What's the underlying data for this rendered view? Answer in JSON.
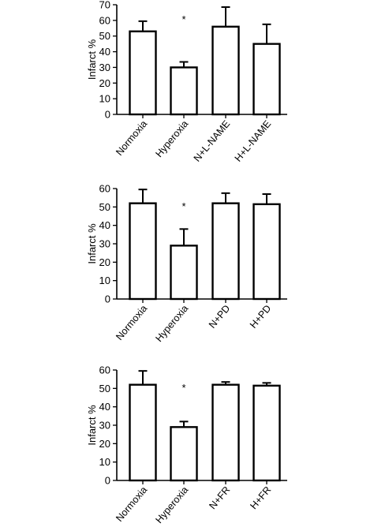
{
  "chart_data": [
    {
      "type": "bar",
      "categories": [
        "Normoxia",
        "Hyperoxia",
        "N+L-NAME",
        "H+L-NAME"
      ],
      "values": [
        53,
        30,
        56,
        45
      ],
      "errors": [
        6.5,
        3.5,
        12.5,
        12.5
      ],
      "ylabel": "Infarct %",
      "ylim": [
        0,
        70
      ],
      "yticks": [
        "0",
        "10",
        "20",
        "30",
        "40",
        "50",
        "60",
        "70"
      ],
      "annotation": {
        "text": "*",
        "category": "Hyperoxia"
      }
    },
    {
      "type": "bar",
      "categories": [
        "Normoxia",
        "Hyperoxia",
        "N+PD",
        "H+PD"
      ],
      "values": [
        52,
        29,
        52,
        51.5
      ],
      "errors": [
        7.5,
        9,
        5.5,
        5.5
      ],
      "ylabel": "Infarct %",
      "ylim": [
        0,
        60
      ],
      "yticks": [
        "0",
        "10",
        "20",
        "30",
        "40",
        "50",
        "60"
      ],
      "annotation": {
        "text": "*",
        "category": "Hyperoxia"
      }
    },
    {
      "type": "bar",
      "categories": [
        "Normoxia",
        "Hyperoxia",
        "N+FR",
        "H+FR"
      ],
      "values": [
        52,
        29,
        52,
        51.5
      ],
      "errors": [
        7.5,
        3,
        1.5,
        1.5
      ],
      "ylabel": "Infarct %",
      "ylim": [
        0,
        60
      ],
      "yticks": [
        "0",
        "10",
        "20",
        "30",
        "40",
        "50",
        "60"
      ],
      "annotation": {
        "text": "*",
        "category": "Hyperoxia"
      }
    }
  ]
}
